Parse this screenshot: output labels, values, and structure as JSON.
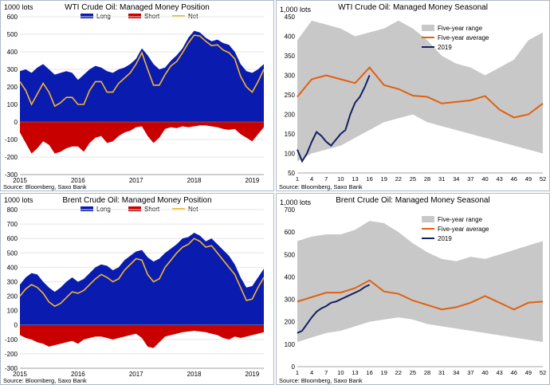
{
  "charts": [
    {
      "id": "wti-position",
      "title": "WTI Crude Oil: Managed  Money Position",
      "unit": "1000 lots",
      "source": "Source: Bloomberg, Saxo Bank",
      "legend": [
        "Long",
        "Short",
        "Net"
      ],
      "colors": {
        "long": "#0a1cb0",
        "short": "#c80000",
        "net": "#f5b52a"
      },
      "ylim": [
        -300,
        600
      ],
      "yticks": [
        -300,
        -200,
        -100,
        0,
        100,
        200,
        300,
        400,
        500,
        600
      ],
      "xlim": [
        2015,
        2019.2
      ],
      "xticks": [
        "2015",
        "2016",
        "2017",
        "2018",
        "2019"
      ]
    },
    {
      "id": "wti-seasonal",
      "title": "WTI Crude Oil: Managed  Money Seasonal",
      "unit": "1,000 lots",
      "source": "Source: Bloomberg, Saxo Bank",
      "legend": [
        "Five-year range",
        "Five-year average",
        "2019"
      ],
      "colors": {
        "range": "#c8c8c8",
        "avg": "#e06010",
        "y2019": "#142060"
      },
      "ylim": [
        50,
        450
      ],
      "yticks": [
        50,
        100,
        150,
        200,
        250,
        300,
        350,
        400,
        450
      ],
      "xticks": [
        "1",
        "4",
        "7",
        "10",
        "13",
        "16",
        "19",
        "22",
        "25",
        "28",
        "31",
        "34",
        "37",
        "40",
        "43",
        "46",
        "49",
        "52"
      ]
    },
    {
      "id": "brent-position",
      "title": "Brent Crude Oil: Managed  Money Position",
      "unit": "1000 lots",
      "source": "Source: Bloomberg, Saxo Bank",
      "legend": [
        "Long",
        "Short",
        "Net"
      ],
      "colors": {
        "long": "#0a1cb0",
        "short": "#c80000",
        "net": "#f5b52a"
      },
      "ylim": [
        -300,
        800
      ],
      "yticks": [
        -300,
        -200,
        -100,
        0,
        100,
        200,
        300,
        400,
        500,
        600,
        700,
        800
      ],
      "xlim": [
        2015,
        2019.2
      ],
      "xticks": [
        "2015",
        "2016",
        "2017",
        "2018",
        "2019"
      ]
    },
    {
      "id": "brent-seasonal",
      "title": "Brent Crude Oil: Managed  Money Seasonal",
      "unit": "1,000 lots",
      "source": "Source: Bloomberg, Saxo Bank",
      "legend": [
        "Five-year range",
        "Five-year average",
        "2019"
      ],
      "colors": {
        "range": "#c8c8c8",
        "avg": "#e06010",
        "y2019": "#142060"
      },
      "ylim": [
        0,
        700
      ],
      "yticks": [
        0,
        100,
        200,
        300,
        400,
        500,
        600,
        700
      ],
      "xticks": [
        "1",
        "4",
        "7",
        "10",
        "13",
        "16",
        "19",
        "22",
        "25",
        "28",
        "31",
        "34",
        "37",
        "40",
        "43",
        "46",
        "49",
        "52"
      ]
    }
  ],
  "chart_data": [
    {
      "type": "area",
      "title": "WTI Crude Oil: Managed  Money Position",
      "ylabel": "1000 lots",
      "ylim": [
        -300,
        600
      ],
      "grid": true,
      "legend": "top",
      "x": [
        2015.0,
        2015.1,
        2015.2,
        2015.3,
        2015.4,
        2015.5,
        2015.6,
        2015.7,
        2015.8,
        2015.9,
        2016.0,
        2016.1,
        2016.2,
        2016.3,
        2016.4,
        2016.5,
        2016.6,
        2016.7,
        2016.8,
        2016.9,
        2017.0,
        2017.1,
        2017.2,
        2017.3,
        2017.4,
        2017.5,
        2017.6,
        2017.7,
        2017.8,
        2017.9,
        2018.0,
        2018.1,
        2018.2,
        2018.3,
        2018.4,
        2018.5,
        2018.6,
        2018.7,
        2018.8,
        2018.9,
        2019.0,
        2019.1,
        2019.2
      ],
      "series": [
        {
          "name": "Long",
          "values": [
            290,
            300,
            280,
            310,
            330,
            300,
            270,
            280,
            290,
            280,
            240,
            270,
            300,
            320,
            310,
            290,
            280,
            300,
            310,
            330,
            360,
            420,
            380,
            330,
            300,
            310,
            350,
            380,
            420,
            480,
            520,
            510,
            480,
            460,
            470,
            450,
            440,
            400,
            330,
            290,
            280,
            300,
            330
          ]
        },
        {
          "name": "Short",
          "values": [
            -60,
            -120,
            -180,
            -150,
            -110,
            -130,
            -180,
            -170,
            -150,
            -140,
            -140,
            -170,
            -120,
            -90,
            -80,
            -120,
            -110,
            -80,
            -60,
            -50,
            -30,
            -25,
            -80,
            -120,
            -90,
            -40,
            -30,
            -35,
            -25,
            -30,
            -25,
            -20,
            -20,
            -25,
            -30,
            -40,
            -45,
            -40,
            -70,
            -90,
            -110,
            -70,
            -30
          ]
        },
        {
          "name": "Net",
          "values": [
            230,
            180,
            100,
            160,
            220,
            170,
            90,
            110,
            140,
            140,
            100,
            100,
            180,
            230,
            230,
            170,
            170,
            220,
            250,
            280,
            330,
            395,
            300,
            210,
            210,
            270,
            320,
            345,
            395,
            450,
            495,
            490,
            460,
            435,
            440,
            410,
            395,
            360,
            260,
            200,
            170,
            230,
            300
          ]
        }
      ]
    },
    {
      "type": "line",
      "title": "WTI Crude Oil: Managed  Money Seasonal",
      "ylabel": "1,000 lots",
      "ylim": [
        50,
        450
      ],
      "x": [
        1,
        4,
        7,
        10,
        13,
        16,
        19,
        22,
        25,
        28,
        31,
        34,
        37,
        40,
        43,
        46,
        49,
        52
      ],
      "series": [
        {
          "name": "Five-year range",
          "values_high": [
            390,
            440,
            430,
            420,
            400,
            410,
            420,
            440,
            420,
            390,
            350,
            330,
            320,
            300,
            320,
            340,
            390,
            410
          ],
          "values_low": [
            80,
            100,
            110,
            120,
            140,
            160,
            180,
            190,
            200,
            180,
            170,
            160,
            150,
            140,
            130,
            120,
            110,
            100
          ]
        },
        {
          "name": "Five-year average",
          "values": [
            245,
            290,
            300,
            290,
            280,
            320,
            275,
            265,
            248,
            245,
            228,
            232,
            236,
            247,
            212,
            192,
            200,
            228
          ]
        },
        {
          "name": "2019",
          "x": [
            1,
            2,
            3,
            4,
            5,
            6,
            7,
            8,
            9,
            10,
            11,
            12,
            13,
            14,
            15,
            16
          ],
          "values": [
            110,
            80,
            100,
            130,
            155,
            145,
            130,
            120,
            135,
            150,
            160,
            200,
            230,
            245,
            270,
            300
          ]
        }
      ]
    },
    {
      "type": "area",
      "title": "Brent Crude Oil: Managed  Money Position",
      "ylabel": "1000 lots",
      "ylim": [
        -300,
        800
      ],
      "grid": true,
      "legend": "top",
      "x": [
        2015.0,
        2015.1,
        2015.2,
        2015.3,
        2015.4,
        2015.5,
        2015.6,
        2015.7,
        2015.8,
        2015.9,
        2016.0,
        2016.1,
        2016.2,
        2016.3,
        2016.4,
        2016.5,
        2016.6,
        2016.7,
        2016.8,
        2016.9,
        2017.0,
        2017.1,
        2017.2,
        2017.3,
        2017.4,
        2017.5,
        2017.6,
        2017.7,
        2017.8,
        2017.9,
        2018.0,
        2018.1,
        2018.2,
        2018.3,
        2018.4,
        2018.5,
        2018.6,
        2018.7,
        2018.8,
        2018.9,
        2019.0,
        2019.1,
        2019.2
      ],
      "series": [
        {
          "name": "Long",
          "values": [
            280,
            330,
            360,
            350,
            300,
            260,
            230,
            260,
            300,
            330,
            300,
            320,
            360,
            400,
            420,
            410,
            380,
            400,
            450,
            480,
            510,
            520,
            470,
            440,
            460,
            500,
            530,
            560,
            600,
            610,
            640,
            620,
            580,
            600,
            560,
            520,
            480,
            420,
            330,
            260,
            270,
            330,
            390
          ]
        },
        {
          "name": "Short",
          "values": [
            -70,
            -90,
            -100,
            -120,
            -130,
            -150,
            -140,
            -130,
            -120,
            -110,
            -130,
            -100,
            -90,
            -80,
            -80,
            -90,
            -100,
            -90,
            -80,
            -70,
            -60,
            -90,
            -150,
            -160,
            -120,
            -80,
            -70,
            -60,
            -50,
            -45,
            -40,
            -45,
            -50,
            -60,
            -70,
            -90,
            -100,
            -80,
            -90,
            -80,
            -70,
            -60,
            -50
          ]
        },
        {
          "name": "Net",
          "values": [
            200,
            250,
            280,
            260,
            220,
            160,
            130,
            150,
            190,
            230,
            220,
            240,
            280,
            320,
            350,
            330,
            300,
            320,
            380,
            420,
            460,
            450,
            350,
            300,
            320,
            400,
            450,
            500,
            540,
            560,
            600,
            580,
            540,
            550,
            500,
            450,
            400,
            350,
            260,
            170,
            180,
            260,
            330
          ]
        }
      ]
    },
    {
      "type": "line",
      "title": "Brent Crude Oil: Managed  Money Seasonal",
      "ylabel": "1,000 lots",
      "ylim": [
        0,
        700
      ],
      "x": [
        1,
        4,
        7,
        10,
        13,
        16,
        19,
        22,
        25,
        28,
        31,
        34,
        37,
        40,
        43,
        46,
        49,
        52
      ],
      "series": [
        {
          "name": "Five-year range",
          "values_high": [
            560,
            580,
            590,
            590,
            610,
            650,
            640,
            600,
            550,
            510,
            480,
            470,
            490,
            480,
            500,
            520,
            540,
            560
          ],
          "values_low": [
            110,
            130,
            150,
            160,
            180,
            200,
            210,
            220,
            210,
            190,
            180,
            170,
            160,
            150,
            140,
            130,
            120,
            110
          ]
        },
        {
          "name": "Five-year average",
          "values": [
            290,
            310,
            330,
            330,
            350,
            385,
            335,
            325,
            295,
            275,
            255,
            265,
            285,
            315,
            285,
            255,
            285,
            290
          ]
        },
        {
          "name": "2019",
          "x": [
            1,
            2,
            3,
            4,
            5,
            6,
            7,
            8,
            9,
            10,
            11,
            12,
            13,
            14,
            15,
            16
          ],
          "values": [
            150,
            160,
            190,
            220,
            245,
            260,
            270,
            285,
            290,
            300,
            310,
            320,
            330,
            340,
            355,
            365
          ]
        }
      ]
    }
  ]
}
